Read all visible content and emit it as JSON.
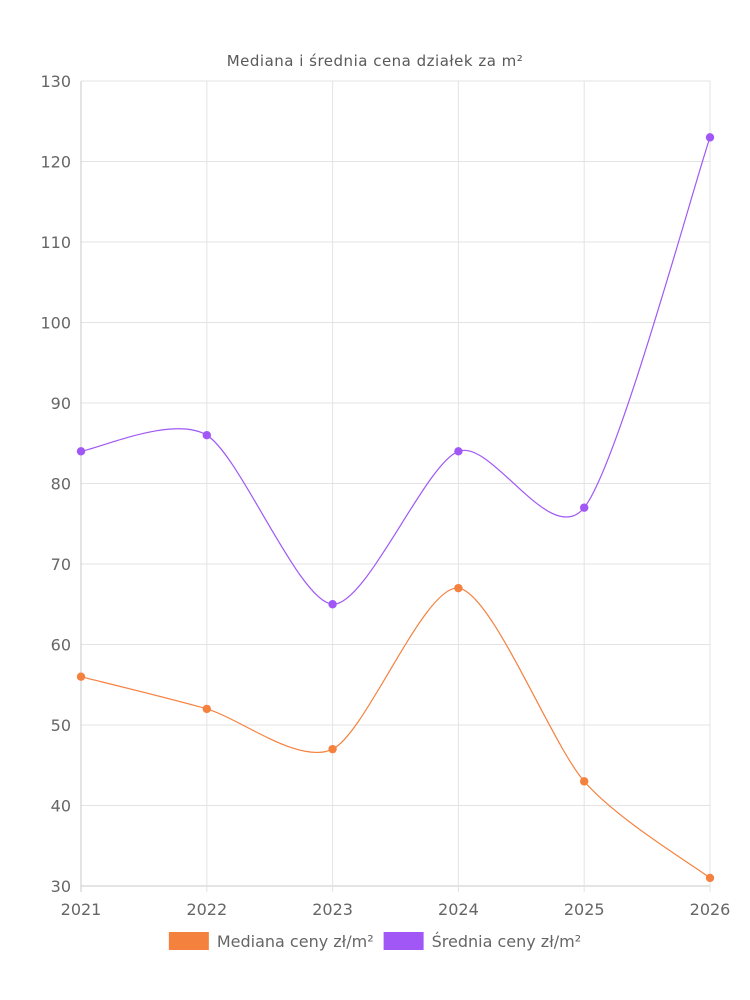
{
  "chart_data": {
    "type": "line",
    "title": "Mediana i średnia cena działek za m²",
    "xlabel": "",
    "ylabel": "",
    "categories": [
      "2021",
      "2022",
      "2023",
      "2024",
      "2025",
      "2026"
    ],
    "ylim": [
      30,
      130
    ],
    "yticks": [
      30,
      40,
      50,
      60,
      70,
      80,
      90,
      100,
      110,
      120,
      130
    ],
    "grid": true,
    "legend_position": "bottom",
    "series": [
      {
        "name": "Mediana ceny zł/m²",
        "color": "#f5813f",
        "values": [
          56,
          52,
          47,
          67,
          43,
          31
        ]
      },
      {
        "name": "Średnia ceny zł/m²",
        "color": "#a157f5",
        "values": [
          84,
          86,
          65,
          84,
          77,
          123
        ]
      }
    ]
  }
}
